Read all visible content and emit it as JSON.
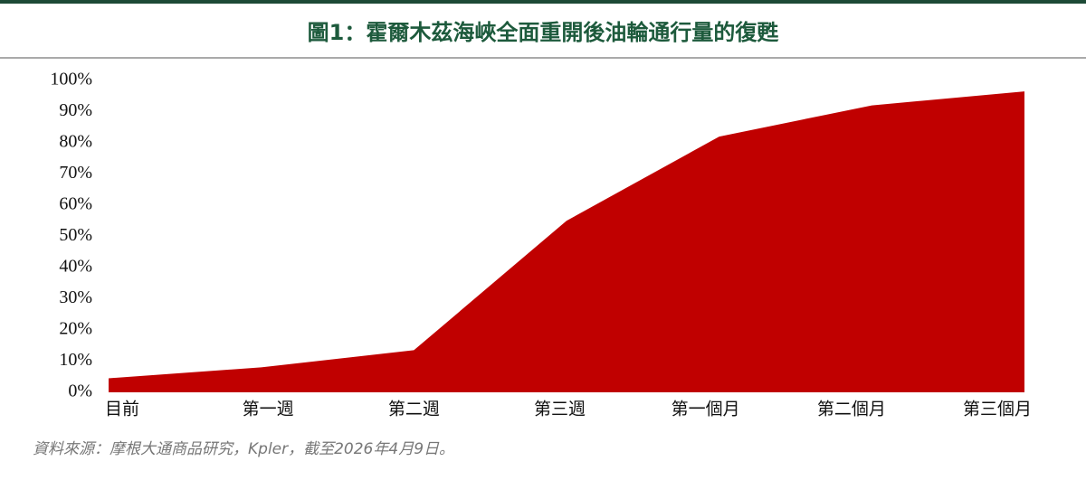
{
  "chart_data": {
    "type": "area",
    "title": "圖1：霍爾木茲海峽全面重開後油輪通行量的復甦",
    "categories": [
      "目前",
      "第一週",
      "第二週",
      "第三週",
      "第一個月",
      "第二個月",
      "第三個月"
    ],
    "values": [
      4.5,
      8,
      13.5,
      55,
      82,
      92,
      96.5
    ],
    "color": "#c00000",
    "ylim": [
      0,
      100
    ],
    "yticks": [
      {
        "value": 0,
        "label": "0%"
      },
      {
        "value": 10,
        "label": "10%"
      },
      {
        "value": 20,
        "label": "20%"
      },
      {
        "value": 30,
        "label": "30%"
      },
      {
        "value": 40,
        "label": "40%"
      },
      {
        "value": 50,
        "label": "50%"
      },
      {
        "value": 60,
        "label": "60%"
      },
      {
        "value": 70,
        "label": "70%"
      },
      {
        "value": 80,
        "label": "80%"
      },
      {
        "value": 90,
        "label": "90%"
      },
      {
        "value": 100,
        "label": "100%"
      }
    ],
    "note": "資料來源：摩根大通商品研究，Kpler，截至2026年4月9日。"
  }
}
